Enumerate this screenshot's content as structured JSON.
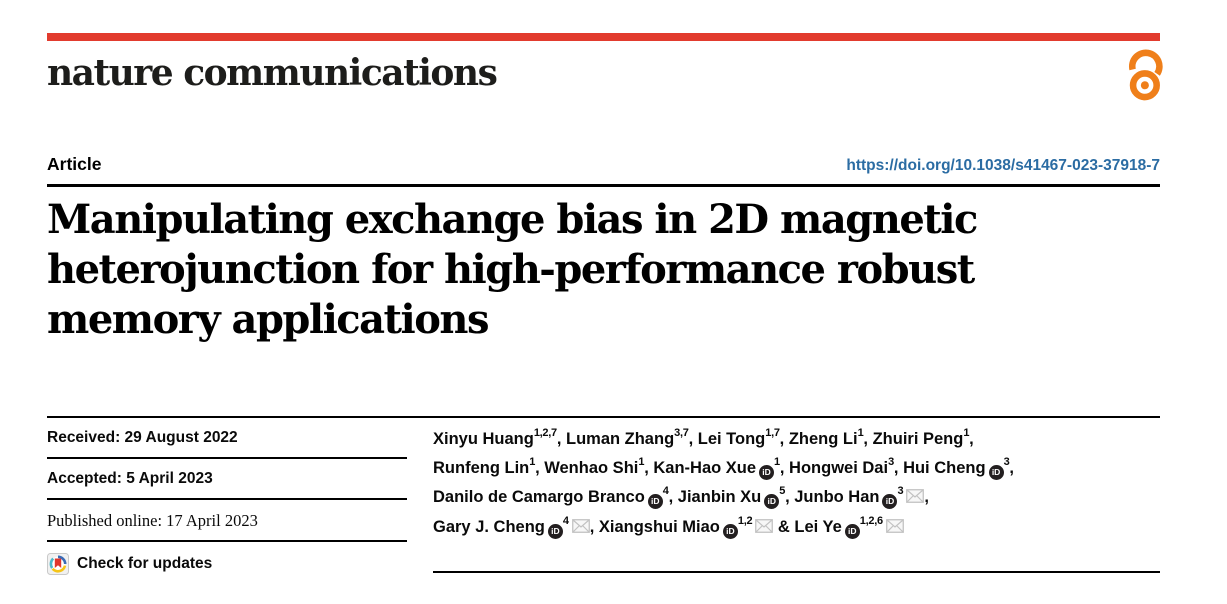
{
  "brand": {
    "journal_logo": "nature communications",
    "bar_color": "#e23b2e",
    "open_access_color": "#ef7f1a"
  },
  "article_header": {
    "label": "Article",
    "doi": "https://doi.org/10.1038/s41467-023-37918-7",
    "link_color": "#2b6ca3"
  },
  "title": {
    "lines": [
      "Manipulating exchange bias in 2D magnetic",
      "heterojunction for high-performance robust",
      "memory applications"
    ]
  },
  "meta": {
    "received": "Received: 29 August 2022",
    "accepted": "Accepted: 5 April 2023",
    "published_online": "Published online: 17 April 2023",
    "check_for_updates": "Check for updates"
  },
  "icons": {
    "open_access": "open-access-lock-icon",
    "crossmark": "crossmark-check-icon",
    "orcid": "orcid-id-icon",
    "mail": "email-envelope-icon"
  },
  "authors": {
    "lines": [
      [
        {
          "name": "Xinyu Huang",
          "sup": "1,2,7",
          "suffix": ", "
        },
        {
          "name": "Luman Zhang",
          "sup": "3,7",
          "suffix": ", "
        },
        {
          "name": "Lei Tong",
          "sup": "1,7",
          "suffix": ", "
        },
        {
          "name": "Zheng Li",
          "sup": "1",
          "suffix": ", "
        },
        {
          "name": "Zhuiri Peng",
          "sup": "1",
          "suffix": ","
        }
      ],
      [
        {
          "name": "Runfeng Lin",
          "sup": "1",
          "suffix": ", "
        },
        {
          "name": "Wenhao Shi",
          "sup": "1",
          "suffix": ", "
        },
        {
          "name": "Kan-Hao Xue",
          "orcid": true,
          "sup": "1",
          "suffix": ", "
        },
        {
          "name": "Hongwei Dai",
          "sup": "3",
          "suffix": ", "
        },
        {
          "name": "Hui Cheng",
          "orcid": true,
          "sup": "3",
          "suffix": ","
        }
      ],
      [
        {
          "name": "Danilo de Camargo Branco",
          "orcid": true,
          "sup": "4",
          "suffix": ", "
        },
        {
          "name": "Jianbin Xu",
          "orcid": true,
          "sup": "5",
          "suffix": ", "
        },
        {
          "name": "Junbo Han",
          "orcid": true,
          "sup": "3",
          "mail": true,
          "suffix": ","
        }
      ],
      [
        {
          "name": "Gary J. Cheng",
          "orcid": true,
          "sup": "4",
          "mail": true,
          "suffix": ", "
        },
        {
          "name": "Xiangshui Miao",
          "orcid": true,
          "sup": "1,2",
          "mail": true,
          "suffix": " & "
        },
        {
          "name": "Lei Ye",
          "orcid": true,
          "sup": "1,2,6",
          "mail": true,
          "suffix": ""
        }
      ]
    ]
  }
}
